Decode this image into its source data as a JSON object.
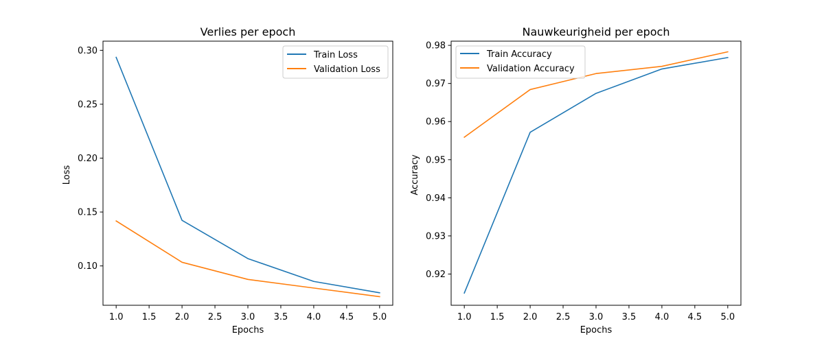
{
  "chart_data": [
    {
      "type": "line",
      "title": "Verlies per epoch",
      "xlabel": "Epochs",
      "ylabel": "Loss",
      "xlim": [
        0.8,
        5.2
      ],
      "ylim": [
        0.0635,
        0.3085
      ],
      "xticks": [
        1.0,
        1.5,
        2.0,
        2.5,
        3.0,
        3.5,
        4.0,
        4.5,
        5.0
      ],
      "xtick_labels": [
        "1.0",
        "1.5",
        "2.0",
        "2.5",
        "3.0",
        "3.5",
        "4.0",
        "4.5",
        "5.0"
      ],
      "yticks": [
        0.1,
        0.15,
        0.2,
        0.25,
        0.3
      ],
      "ytick_labels": [
        "0.10",
        "0.15",
        "0.20",
        "0.25",
        "0.30"
      ],
      "grid": false,
      "legend_position": "upper right",
      "x": [
        1,
        2,
        3,
        4,
        5
      ],
      "series": [
        {
          "name": "Train Loss",
          "color": "#1f77b4",
          "values": [
            0.2935,
            0.1423,
            0.1068,
            0.0856,
            0.0751
          ]
        },
        {
          "name": "Validation Loss",
          "color": "#ff7f0e",
          "values": [
            0.1417,
            0.1034,
            0.0875,
            0.0795,
            0.0715
          ]
        }
      ]
    },
    {
      "type": "line",
      "title": "Nauwkeurigheid per epoch",
      "xlabel": "Epochs",
      "ylabel": "Accuracy",
      "xlim": [
        0.8,
        5.2
      ],
      "ylim": [
        0.9118,
        0.9811
      ],
      "xticks": [
        1.0,
        1.5,
        2.0,
        2.5,
        3.0,
        3.5,
        4.0,
        4.5,
        5.0
      ],
      "xtick_labels": [
        "1.0",
        "1.5",
        "2.0",
        "2.5",
        "3.0",
        "3.5",
        "4.0",
        "4.5",
        "5.0"
      ],
      "yticks": [
        0.92,
        0.93,
        0.94,
        0.95,
        0.96,
        0.97,
        0.98
      ],
      "ytick_labels": [
        "0.92",
        "0.93",
        "0.94",
        "0.95",
        "0.96",
        "0.97",
        "0.98"
      ],
      "grid": false,
      "legend_position": "upper left",
      "x": [
        1,
        2,
        3,
        4,
        5
      ],
      "series": [
        {
          "name": "Train Accuracy",
          "color": "#1f77b4",
          "values": [
            0.915,
            0.9572,
            0.9674,
            0.9738,
            0.9768
          ]
        },
        {
          "name": "Validation Accuracy",
          "color": "#ff7f0e",
          "values": [
            0.9559,
            0.9684,
            0.9726,
            0.9745,
            0.9783
          ]
        }
      ]
    }
  ]
}
